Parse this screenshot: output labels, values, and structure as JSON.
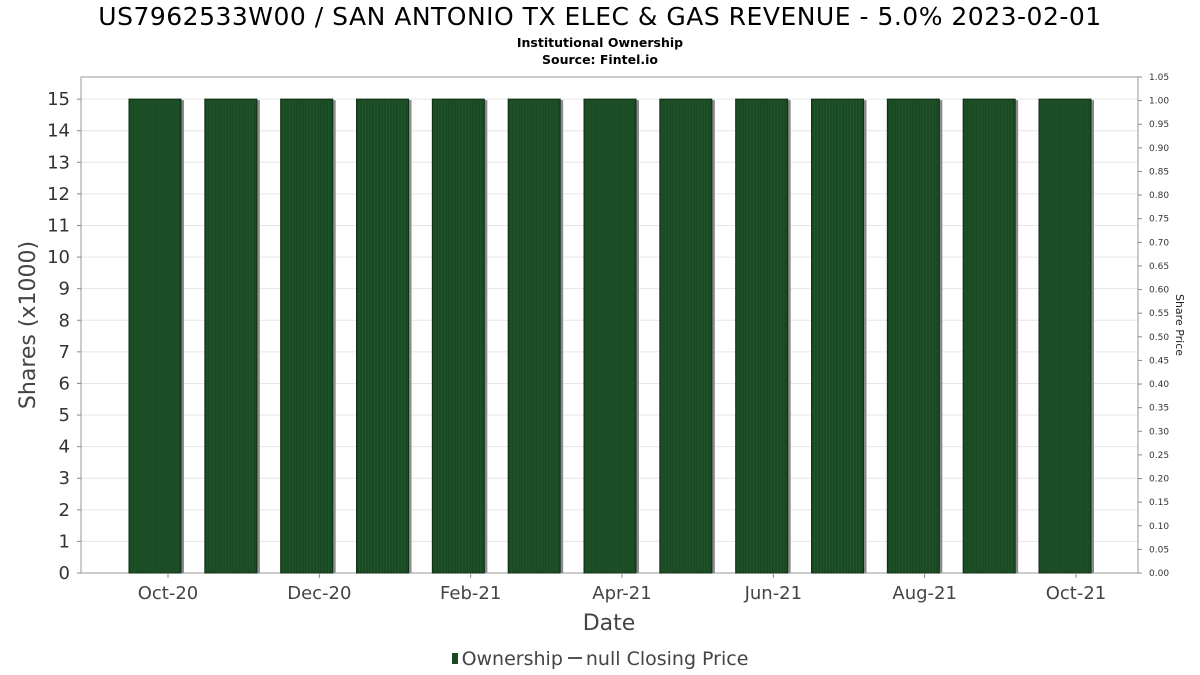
{
  "title": "US7962533W00 / SAN ANTONIO TX ELEC & GAS REVENUE - 5.0% 2023-02-01",
  "subtitle": "Institutional Ownership",
  "source": "Source: Fintel.io",
  "colors": {
    "bar": "#1a4a24",
    "bar_stripe": "#2f6b35",
    "bar_shadow": "#8a8a8a",
    "grid": "#e6e6e6"
  },
  "chart_data": {
    "type": "bar",
    "xlabel": "Date",
    "ylabel": "Shares (x1000)",
    "y2label": "Share Price",
    "ylim": [
      0,
      15.7
    ],
    "y2lim": [
      0,
      1.05
    ],
    "grid": true,
    "legend_position": "bottom",
    "yticks": [
      "0",
      "1",
      "2",
      "3",
      "4",
      "5",
      "6",
      "7",
      "8",
      "9",
      "10",
      "11",
      "12",
      "13",
      "14",
      "15"
    ],
    "y2ticks": [
      "0.00",
      "0.05",
      "0.10",
      "0.15",
      "0.20",
      "0.25",
      "0.30",
      "0.35",
      "0.40",
      "0.45",
      "0.50",
      "0.55",
      "0.60",
      "0.65",
      "0.70",
      "0.75",
      "0.80",
      "0.85",
      "0.90",
      "0.95",
      "1.00",
      "1.05"
    ],
    "xticks": [
      "Oct-20",
      "Dec-20",
      "Feb-21",
      "Apr-21",
      "Jun-21",
      "Aug-21",
      "Oct-21"
    ],
    "series": [
      {
        "name": "Ownership",
        "values": [
          15,
          15,
          15,
          15,
          15,
          15,
          15,
          15,
          15,
          15,
          15,
          15,
          15
        ]
      },
      {
        "name": "null Closing Price",
        "values": []
      }
    ]
  }
}
